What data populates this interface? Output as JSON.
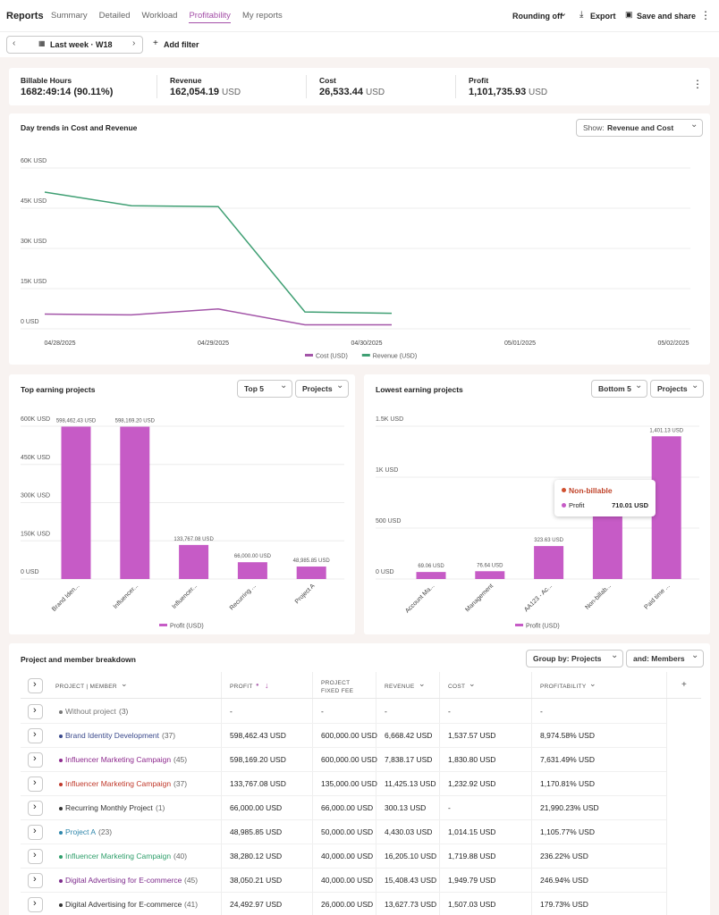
{
  "nav": {
    "title": "Reports",
    "tabs": [
      "Summary",
      "Detailed",
      "Workload",
      "Profitability",
      "My reports"
    ],
    "active_tab": 3,
    "rounding": "Rounding off",
    "export": "Export",
    "save": "Save and share"
  },
  "filter": {
    "period": "Last week · W18",
    "add": "Add filter"
  },
  "summary": [
    {
      "label": "Billable Hours",
      "value": "1682:49:14 (90.11%)"
    },
    {
      "label": "Revenue",
      "value": "162,054.19",
      "unit": "USD"
    },
    {
      "label": "Cost",
      "value": "26,533.44",
      "unit": "USD"
    },
    {
      "label": "Profit",
      "value": "1,101,735.93",
      "unit": "USD"
    }
  ],
  "trend_chart": {
    "type": "line",
    "title": "Day trends in Cost and Revenue",
    "show_label": "Show:",
    "show_value": "Revenue and Cost",
    "categories": [
      "04/28/2025",
      "04/29/2025",
      "04/30/2025",
      "05/01/2025",
      "05/02/2025"
    ],
    "series": [
      {
        "name": "Cost (USD)",
        "color": "#a355a8",
        "values": [
          5500,
          5200,
          7400,
          1500,
          1500
        ]
      },
      {
        "name": "Revenue (USD)",
        "color": "#3f9f73",
        "values": [
          51000,
          45900,
          45600,
          6300,
          5800
        ]
      }
    ],
    "ylim": [
      0,
      60000
    ],
    "yticks": [
      {
        "value": 0,
        "label": "0 USD"
      },
      {
        "value": 15000,
        "label": "15K USD"
      },
      {
        "value": 30000,
        "label": "30K USD"
      },
      {
        "value": 45000,
        "label": "45K USD"
      },
      {
        "value": 60000,
        "label": "60K USD"
      }
    ]
  },
  "top_chart": {
    "type": "bar",
    "title": "Top earning projects",
    "filters": [
      "Top 5",
      "Projects"
    ],
    "categories": [
      "Brand Iden...",
      "Influencer...",
      "Influencer...",
      "Recurring ...",
      "Project A"
    ],
    "series": [
      {
        "name": "Profit (USD)",
        "color": "#c65bc6",
        "values": [
          598462.43,
          598169.2,
          133767.08,
          66000.0,
          48985.85
        ],
        "value_labels": [
          "598,462.43 USD",
          "598,169.20 USD",
          "133,767.08 USD",
          "66,000.00 USD",
          "48,985.85 USD"
        ]
      }
    ],
    "ylim": [
      0,
      600000
    ],
    "yticks": [
      {
        "value": 0,
        "label": "0 USD"
      },
      {
        "value": 150000,
        "label": "150K USD"
      },
      {
        "value": 300000,
        "label": "300K USD"
      },
      {
        "value": 450000,
        "label": "450K USD"
      },
      {
        "value": 600000,
        "label": "600K USD"
      }
    ]
  },
  "low_chart": {
    "type": "bar",
    "title": "Lowest earning projects",
    "filters": [
      "Bottom 5",
      "Projects"
    ],
    "categories": [
      "Account Ma...",
      "Management",
      "AA123 - Ac...",
      "Non-billab...",
      "Paid time ..."
    ],
    "series": [
      {
        "name": "Profit (USD)",
        "color": "#c65bc6",
        "values": [
          69.06,
          76.64,
          323.63,
          710.01,
          1401.13
        ],
        "value_labels": [
          "69.06 USD",
          "76.64 USD",
          "323.63 USD",
          "710.01 USD",
          "1,401.13 USD"
        ]
      }
    ],
    "ylim": [
      0,
      1500
    ],
    "yticks": [
      {
        "value": 0,
        "label": "0 USD"
      },
      {
        "value": 500,
        "label": "500 USD"
      },
      {
        "value": 1000,
        "label": "1K USD"
      },
      {
        "value": 1500,
        "label": "1.5K USD"
      }
    ],
    "tooltip": {
      "title": "Non-billable",
      "label": "Profit",
      "index": 3
    }
  },
  "table": {
    "title": "Project and member breakdown",
    "group_by": "Group by: Projects",
    "and": "and: Members",
    "columns": [
      "PROJECT | MEMBER",
      "PROFIT",
      "PROJECT FIXED FEE",
      "REVENUE",
      "COST",
      "PROFITABILITY"
    ],
    "rows": [
      {
        "name": "Without project",
        "count": "(3)",
        "color": "#777777",
        "cells": [
          "-",
          "-",
          "-",
          "-",
          "-"
        ]
      },
      {
        "name": "Brand Identity Development",
        "count": "(37)",
        "color": "#3b4a8c",
        "cells": [
          "598,462.43 USD",
          "600,000.00 USD",
          "6,668.42 USD",
          "1,537.57 USD",
          "8,974.58% USD"
        ]
      },
      {
        "name": "Influencer Marketing Campaign",
        "count": "(45)",
        "color": "#8e2a8e",
        "cells": [
          "598,169.20 USD",
          "600,000.00 USD",
          "7,838.17 USD",
          "1,830.80 USD",
          "7,631.49% USD"
        ]
      },
      {
        "name": "Influencer Marketing Campaign",
        "count": "(37)",
        "color": "#c0392b",
        "cells": [
          "133,767.08 USD",
          "135,000.00 USD",
          "11,425.13 USD",
          "1,232.92 USD",
          "1,170.81% USD"
        ]
      },
      {
        "name": "Recurring Monthly Project",
        "count": "(1)",
        "color": "#333333",
        "cells": [
          "66,000.00 USD",
          "66,000.00 USD",
          "300.13 USD",
          "-",
          "21,990.23% USD"
        ]
      },
      {
        "name": "Project A",
        "count": "(23)",
        "color": "#2e86ab",
        "cells": [
          "48,985.85 USD",
          "50,000.00 USD",
          "4,430.03 USD",
          "1,014.15 USD",
          "1,105.77% USD"
        ]
      },
      {
        "name": "Influencer Marketing Campaign",
        "count": "(40)",
        "color": "#2e9e6a",
        "cells": [
          "38,280.12 USD",
          "40,000.00 USD",
          "16,205.10 USD",
          "1,719.88 USD",
          "236.22% USD"
        ]
      },
      {
        "name": "Digital Advertising for E-commerce",
        "count": "(45)",
        "color": "#7d2b8c",
        "cells": [
          "38,050.21 USD",
          "40,000.00 USD",
          "15,408.43 USD",
          "1,949.79 USD",
          "246.94% USD"
        ]
      },
      {
        "name": "Digital Advertising for E-commerce",
        "count": "(41)",
        "color": "#333333",
        "cells": [
          "24,492.97 USD",
          "26,000.00 USD",
          "13,627.73 USD",
          "1,507.03 USD",
          "179.73% USD"
        ]
      }
    ]
  }
}
